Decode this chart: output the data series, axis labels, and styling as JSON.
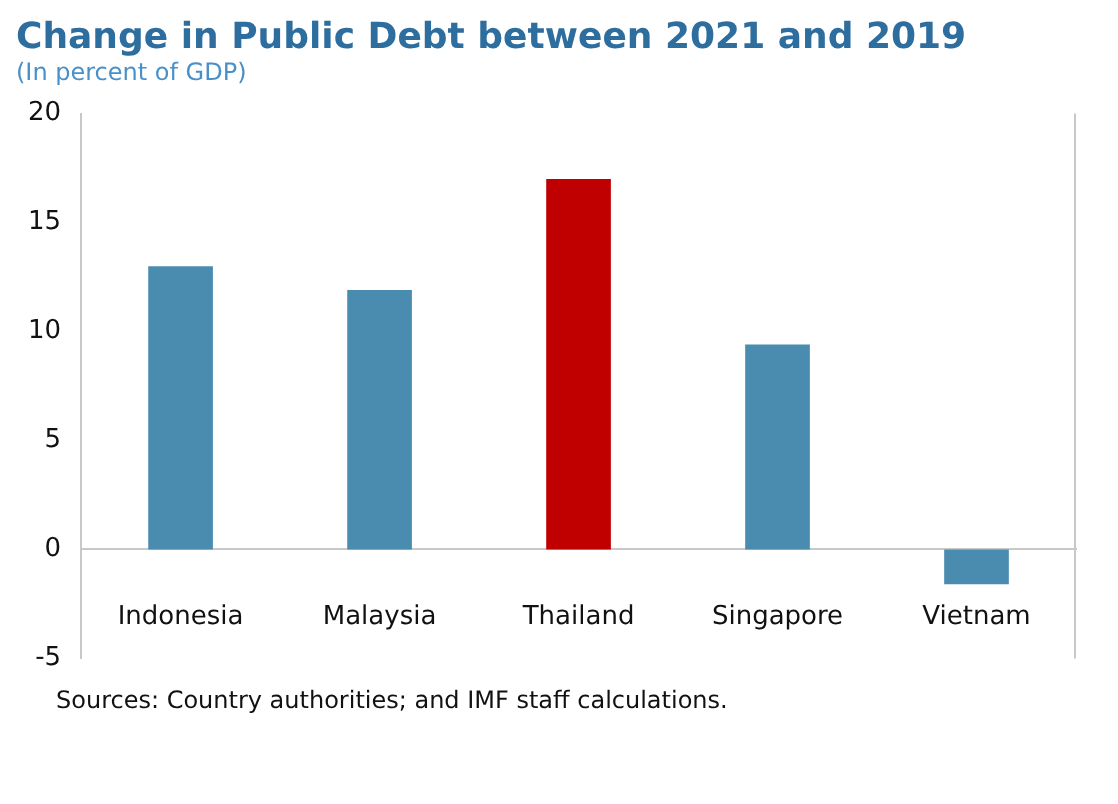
{
  "chart_data": {
    "type": "bar",
    "title": "Change in Public Debt between 2021 and 2019",
    "subtitle": "(In percent of GDP)",
    "categories": [
      "Indonesia",
      "Malaysia",
      "Thailand",
      "Singapore",
      "Vietnam"
    ],
    "values": [
      13,
      11.9,
      17,
      9.4,
      -1.6
    ],
    "colors": [
      "#4a8bb0",
      "#4a8bb0",
      "#c00000",
      "#4a8bb0",
      "#4a8bb0"
    ],
    "ylim": [
      -5,
      20
    ],
    "yticks": [
      -5,
      0,
      5,
      10,
      15,
      20
    ],
    "grid": false,
    "legend": false,
    "annotations": [
      "Sources: Country authorities; and IMF staff calculations."
    ]
  }
}
